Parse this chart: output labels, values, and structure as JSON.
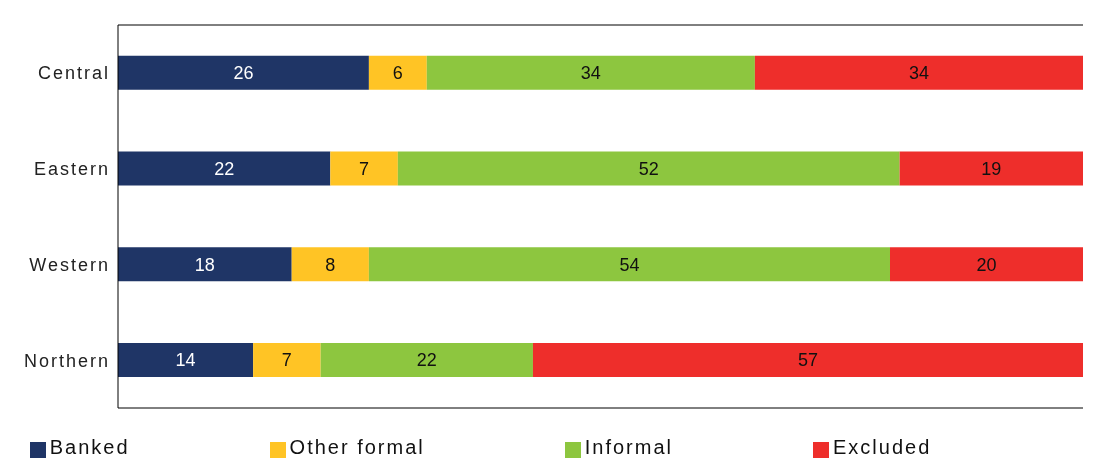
{
  "chart_data": {
    "type": "bar",
    "orientation": "horizontal",
    "stacked": true,
    "data_labels": true,
    "legend": "bottom",
    "grid": false,
    "categories": [
      "Central",
      "Eastern",
      "Western",
      "Northern"
    ],
    "series": [
      {
        "name": "Banked",
        "color": "#1f3566",
        "values": [
          26,
          22,
          18,
          14
        ]
      },
      {
        "name": "Other formal",
        "color": "#ffc425",
        "values": [
          6,
          7,
          8,
          7
        ]
      },
      {
        "name": "Informal",
        "color": "#8dc63f",
        "values": [
          34,
          52,
          54,
          22
        ]
      },
      {
        "name": "Excluded",
        "color": "#ee2e2b",
        "values": [
          34,
          19,
          20,
          57
        ]
      }
    ]
  }
}
